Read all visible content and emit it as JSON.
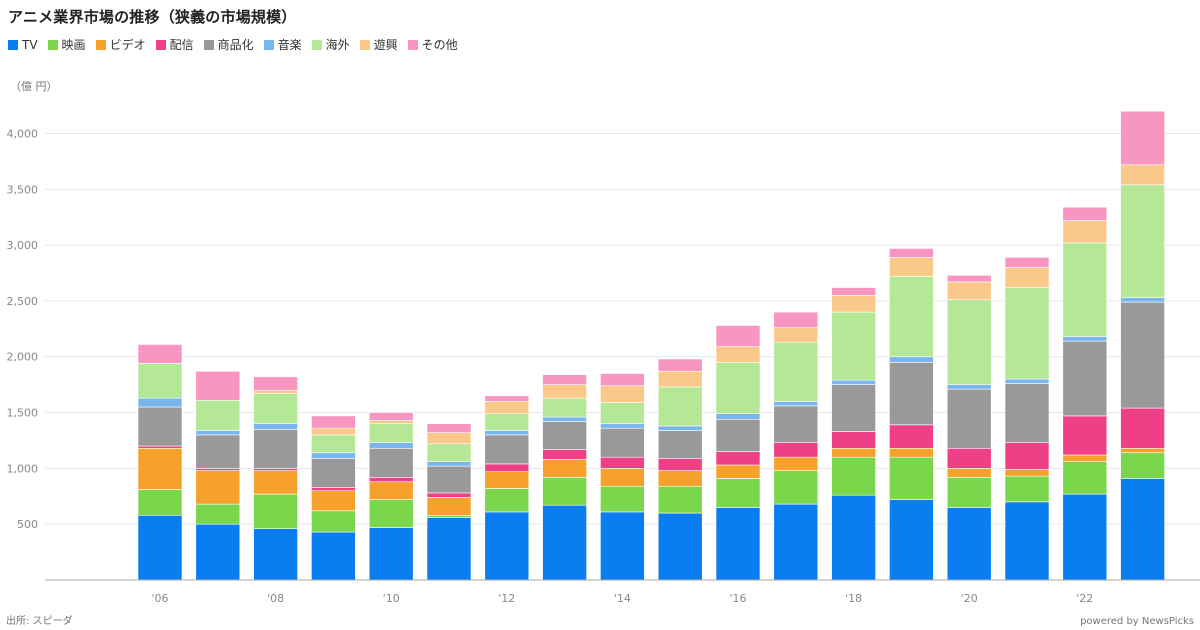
{
  "title": "アニメ業界市場の推移（狭義の市場規模）",
  "unit_label": "（億 円）",
  "source": "出所: スピーダ",
  "credit": "powered by NewsPicks",
  "chart_data": {
    "type": "bar",
    "stacked": true,
    "x_tick_labels": [
      "'06",
      "'08",
      "'10",
      "'12",
      "'14",
      "'16",
      "'18",
      "'20",
      "'22"
    ],
    "categories": [
      "2006",
      "2007",
      "2008",
      "2009",
      "2010",
      "2011",
      "2012",
      "2013",
      "2014",
      "2015",
      "2016",
      "2017",
      "2018",
      "2019",
      "2020",
      "2021",
      "2022",
      "2023"
    ],
    "ylim": [
      0,
      4300
    ],
    "y_ticks": [
      500,
      1000,
      1500,
      2000,
      2500,
      3000,
      3500,
      4000
    ],
    "y_tick_labels": [
      "500",
      "1,000",
      "1,500",
      "2,000",
      "2,500",
      "3,000",
      "3,500",
      "4,000"
    ],
    "grid": true,
    "legend_position": "top-left",
    "series": [
      {
        "name": "TV",
        "color": "#0a7df0",
        "values": [
          580,
          500,
          460,
          430,
          470,
          560,
          610,
          670,
          610,
          600,
          650,
          680,
          760,
          720,
          650,
          700,
          770,
          910
        ]
      },
      {
        "name": "映画",
        "color": "#7ad64b",
        "values": [
          230,
          180,
          310,
          190,
          250,
          20,
          210,
          250,
          230,
          240,
          260,
          300,
          340,
          380,
          270,
          230,
          290,
          230
        ]
      },
      {
        "name": "ビデオ",
        "color": "#f5a12b",
        "values": [
          370,
          300,
          210,
          180,
          160,
          160,
          150,
          160,
          160,
          140,
          120,
          120,
          80,
          80,
          80,
          60,
          60,
          40
        ]
      },
      {
        "name": "配信",
        "color": "#ef3f86",
        "values": [
          20,
          20,
          20,
          30,
          40,
          40,
          70,
          90,
          100,
          110,
          120,
          130,
          150,
          210,
          180,
          240,
          350,
          360
        ]
      },
      {
        "name": "商品化",
        "color": "#999999",
        "values": [
          350,
          300,
          350,
          260,
          260,
          240,
          260,
          250,
          260,
          250,
          290,
          330,
          420,
          560,
          530,
          530,
          670,
          950
        ]
      },
      {
        "name": "音楽",
        "color": "#79b6f0",
        "values": [
          80,
          40,
          50,
          50,
          50,
          40,
          40,
          40,
          40,
          40,
          50,
          40,
          40,
          50,
          40,
          40,
          40,
          40
        ]
      },
      {
        "name": "海外",
        "color": "#b4e796",
        "values": [
          310,
          270,
          270,
          160,
          170,
          160,
          150,
          170,
          190,
          350,
          460,
          530,
          610,
          720,
          760,
          820,
          840,
          1010
        ]
      },
      {
        "name": "遊興",
        "color": "#fac98a",
        "values": [
          0,
          0,
          30,
          60,
          30,
          100,
          110,
          120,
          150,
          140,
          140,
          130,
          150,
          170,
          160,
          180,
          200,
          180
        ]
      },
      {
        "name": "その他",
        "color": "#f796c0",
        "values": [
          170,
          260,
          120,
          110,
          70,
          80,
          50,
          90,
          110,
          110,
          190,
          140,
          70,
          80,
          60,
          90,
          120,
          480
        ]
      }
    ]
  }
}
